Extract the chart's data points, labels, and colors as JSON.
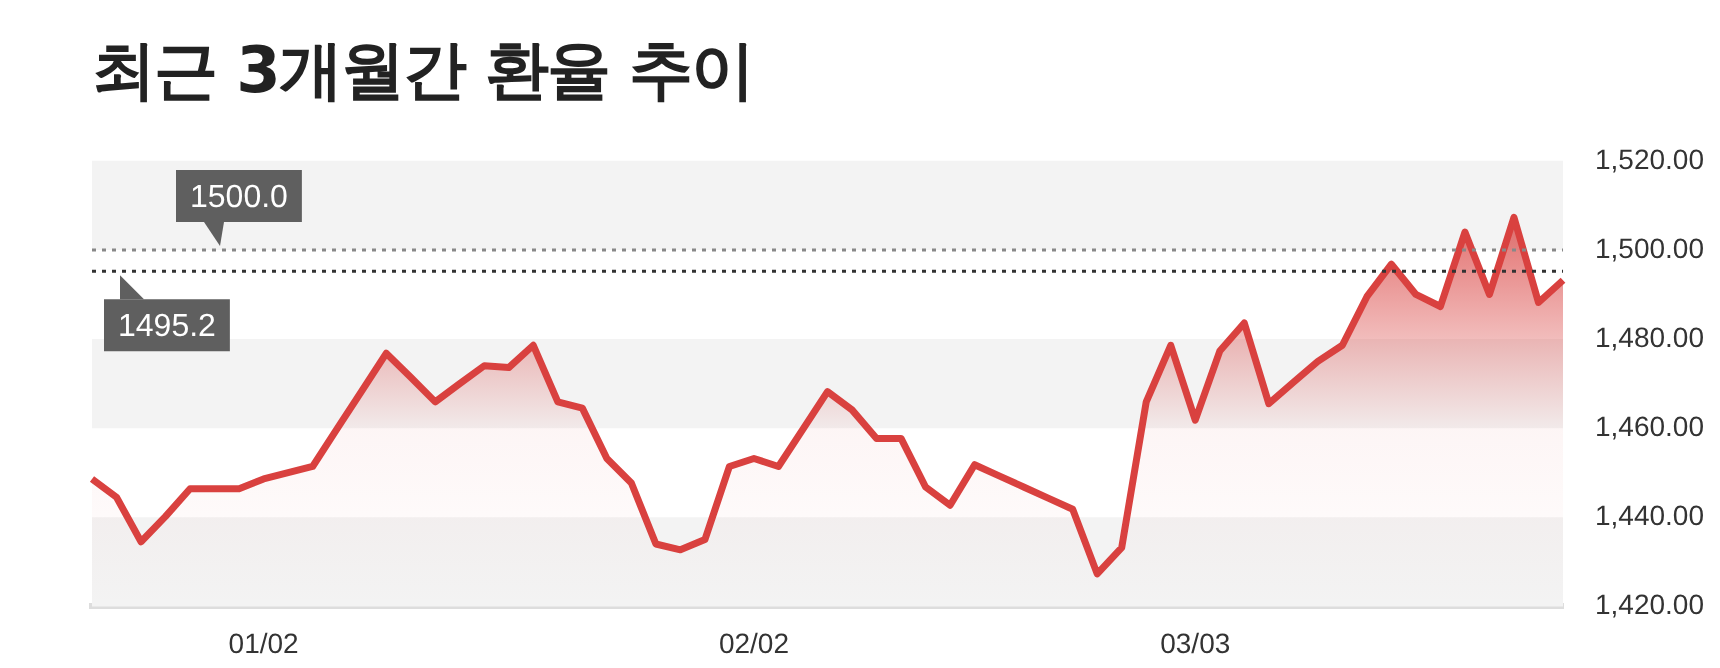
{
  "chart_data": {
    "type": "area",
    "title": "최근 3개월간 환율 추이",
    "categories": [
      null,
      null,
      null,
      null,
      null,
      null,
      null,
      "01/02",
      null,
      null,
      null,
      null,
      null,
      null,
      null,
      null,
      null,
      null,
      null,
      null,
      null,
      null,
      null,
      null,
      null,
      null,
      null,
      "02/02",
      null,
      null,
      null,
      null,
      null,
      null,
      null,
      null,
      null,
      null,
      null,
      null,
      null,
      null,
      null,
      null,
      null,
      "03/03",
      null,
      null,
      null,
      null,
      null,
      null,
      null,
      null,
      null,
      null,
      null,
      null,
      null,
      null,
      null
    ],
    "series": [
      {
        "color": "#d9413f",
        "values": [
          1448.6,
          1444.5,
          1434.5,
          1440.2,
          1446.4,
          1446.4,
          1446.4,
          1448.6,
          1450.0,
          1451.4,
          1459.9,
          1468.3,
          1476.8,
          1471.4,
          1465.9,
          1470.0,
          1474.0,
          1473.6,
          1478.6,
          1465.9,
          1464.5,
          1453.2,
          1447.7,
          1434.0,
          1432.7,
          1435.0,
          1451.4,
          1453.2,
          1451.4,
          1459.8,
          1468.2,
          1464.1,
          1457.7,
          1457.7,
          1446.8,
          1442.7,
          1451.8,
          1449.3,
          1446.8,
          1444.3,
          1441.8,
          1427.3,
          1433.2,
          1465.9,
          1478.6,
          1461.8,
          1477.3,
          1483.6,
          1465.5,
          1470.3,
          1475.0,
          1478.6,
          1489.5,
          1496.8,
          1490.0,
          1487.3,
          1504.0,
          1490.0,
          1507.3,
          1488.2,
          1493.2
        ]
      }
    ],
    "ylim": [
      1420,
      1520
    ],
    "yticks": [
      {
        "value": 1420,
        "label": "1,420.00"
      },
      {
        "value": 1440,
        "label": "1,440.00"
      },
      {
        "value": 1460,
        "label": "1,460.00"
      },
      {
        "value": 1480,
        "label": "1,480.00"
      },
      {
        "value": 1500,
        "label": "1,500.00"
      },
      {
        "value": 1520,
        "label": "1,520.00"
      }
    ],
    "ref_lines": [
      {
        "axis": "y",
        "value": 1500,
        "label": "1500.0",
        "color": "#888888",
        "line_style": "dotted"
      },
      {
        "axis": "y",
        "value": 1495.2,
        "label": "1495.2",
        "color": "#333333",
        "line_style": "dotted"
      }
    ],
    "legend": false,
    "marker": "none",
    "line_style": "solid"
  }
}
